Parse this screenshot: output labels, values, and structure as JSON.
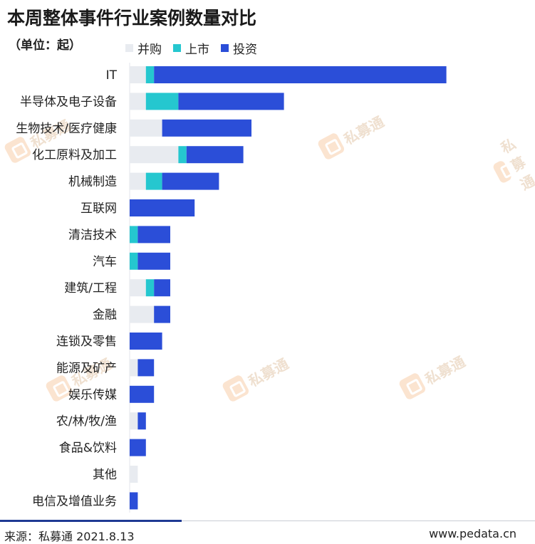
{
  "title": "本周整体事件行业案例数量对比",
  "unit_label": "（单位：起）",
  "colors": {
    "bingou": "#e8ebf0",
    "shangshi": "#25c7cf",
    "touzi": "#2b4ed8"
  },
  "watermark_text": "私募通",
  "footer": {
    "source": "来源：私募通 2021.8.13",
    "site": "www.pedata.cn"
  },
  "chart_data": {
    "type": "bar",
    "orientation": "horizontal",
    "stacked": true,
    "title": "本周整体事件行业案例数量对比",
    "categories": [
      "IT",
      "半导体及电子设备",
      "生物技术/医疗健康",
      "化工原料及加工",
      "机械制造",
      "互联网",
      "清洁技术",
      "汽车",
      "建筑/工程",
      "金融",
      "连锁及零售",
      "能源及矿产",
      "娱乐传媒",
      "农/林/牧/渔",
      "食品&饮料",
      "其他",
      "电信及增值业务"
    ],
    "series": [
      {
        "name": "并购",
        "values": [
          2,
          2,
          4,
          6,
          2,
          0,
          0,
          0,
          2,
          3,
          0,
          1,
          0,
          1,
          0,
          1,
          0
        ]
      },
      {
        "name": "上市",
        "values": [
          1,
          4,
          0,
          1,
          2,
          0,
          1,
          1,
          1,
          0,
          0,
          0,
          0,
          0,
          0,
          0,
          0
        ]
      },
      {
        "name": "投资",
        "values": [
          36,
          13,
          11,
          7,
          7,
          8,
          4,
          4,
          2,
          2,
          4,
          2,
          3,
          1,
          2,
          0,
          1
        ]
      }
    ],
    "legend_position": "top",
    "grid": false
  }
}
